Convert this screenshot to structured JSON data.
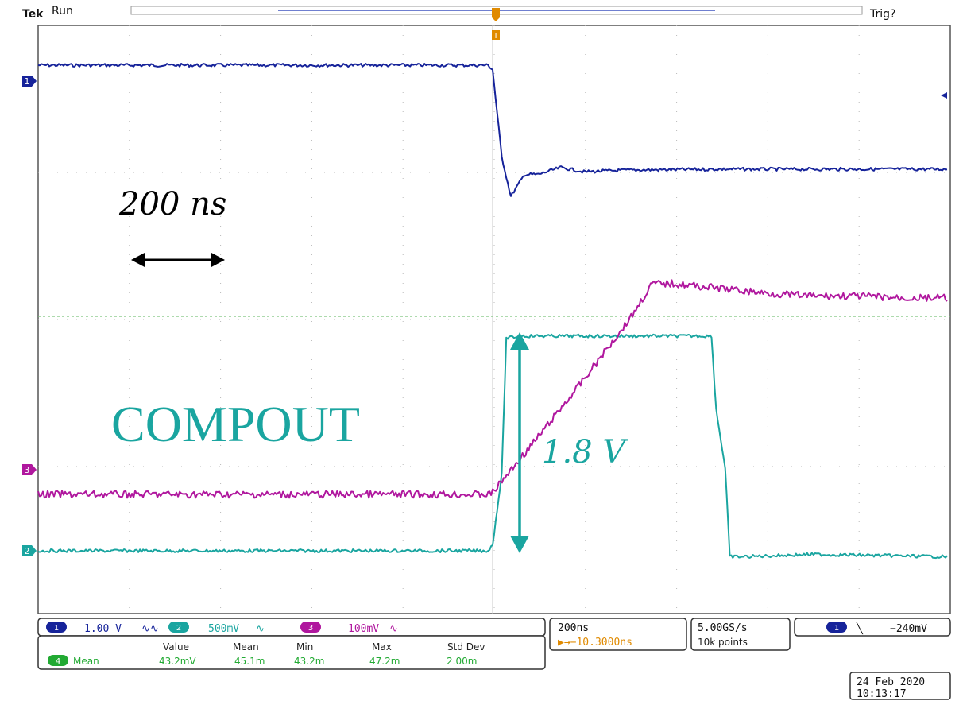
{
  "header": {
    "brand": "Tek",
    "status": "Run",
    "trigger_state": "Trig?"
  },
  "colors": {
    "ch1": "#16239a",
    "ch2": "#1aa5a0",
    "ch3": "#b0179e",
    "math": "#22aa33",
    "grid": "#b8b8b8",
    "trigger": "#e08a00"
  },
  "annotations": {
    "time_label": "200 ns",
    "compout_label": "COMPOUT",
    "amplitude_label": "1.8 V"
  },
  "markers": {
    "ch1": "1",
    "ch2": "2",
    "ch3": "3",
    "trigger": "T"
  },
  "channel_settings": {
    "ch1_scale": "1.00 V",
    "ch1_coupling": "∿∿",
    "ch2_scale": "500mV",
    "ch2_coupling": "∿",
    "ch3_scale": "100mV",
    "ch3_coupling": "∿",
    "ch1_badge": "1",
    "ch2_badge": "2",
    "ch3_badge": "3"
  },
  "timebase": {
    "scale": "200ns",
    "delay": "▶→−10.3000ns",
    "sample_rate": "5.00GS/s",
    "record_length": "10k points"
  },
  "trigger_panel": {
    "source_badge": "1",
    "slope": "╲",
    "level": "−240mV"
  },
  "measurement": {
    "badge": "4",
    "name": "Mean",
    "headers": [
      "Value",
      "Mean",
      "Min",
      "Max",
      "Std Dev"
    ],
    "values": [
      "43.2mV",
      "45.1m",
      "43.2m",
      "47.2m",
      "2.00m"
    ]
  },
  "timestamp": {
    "date": "24 Feb 2020",
    "time": "10:13:17"
  },
  "chart_data": {
    "type": "line",
    "x_unit": "ns",
    "grid": {
      "divisions_x": 10,
      "divisions_y": 8
    },
    "series": [
      {
        "id": "ch1",
        "x": [
          -1000,
          -10,
          0,
          10,
          20,
          40,
          70,
          100,
          150,
          200,
          300,
          500,
          700,
          1000
        ],
        "y": [
          3.95,
          3.95,
          3.9,
          3.4,
          2.9,
          2.45,
          2.7,
          2.7,
          2.78,
          2.73,
          2.75,
          2.76,
          2.76,
          2.76
        ]
      },
      {
        "id": "ch2",
        "x": [
          -1000,
          -10,
          0,
          20,
          30,
          60,
          150,
          300,
          450,
          480,
          490,
          510,
          520,
          550,
          700,
          1000
        ],
        "y": [
          -0.9,
          -0.9,
          -0.85,
          -0.25,
          0.9,
          0.92,
          0.92,
          0.92,
          0.92,
          0.92,
          0.3,
          -0.2,
          -0.95,
          -0.95,
          -0.93,
          -0.95
        ]
      },
      {
        "id": "ch3",
        "x": [
          -1000,
          -10,
          0,
          100,
          200,
          300,
          350,
          400,
          500,
          600,
          700,
          800,
          900,
          1000
        ],
        "y": [
          -0.35,
          -0.35,
          -0.33,
          0.25,
          0.85,
          1.48,
          1.85,
          1.85,
          1.8,
          1.75,
          1.72,
          1.72,
          1.7,
          1.7
        ]
      }
    ]
  }
}
